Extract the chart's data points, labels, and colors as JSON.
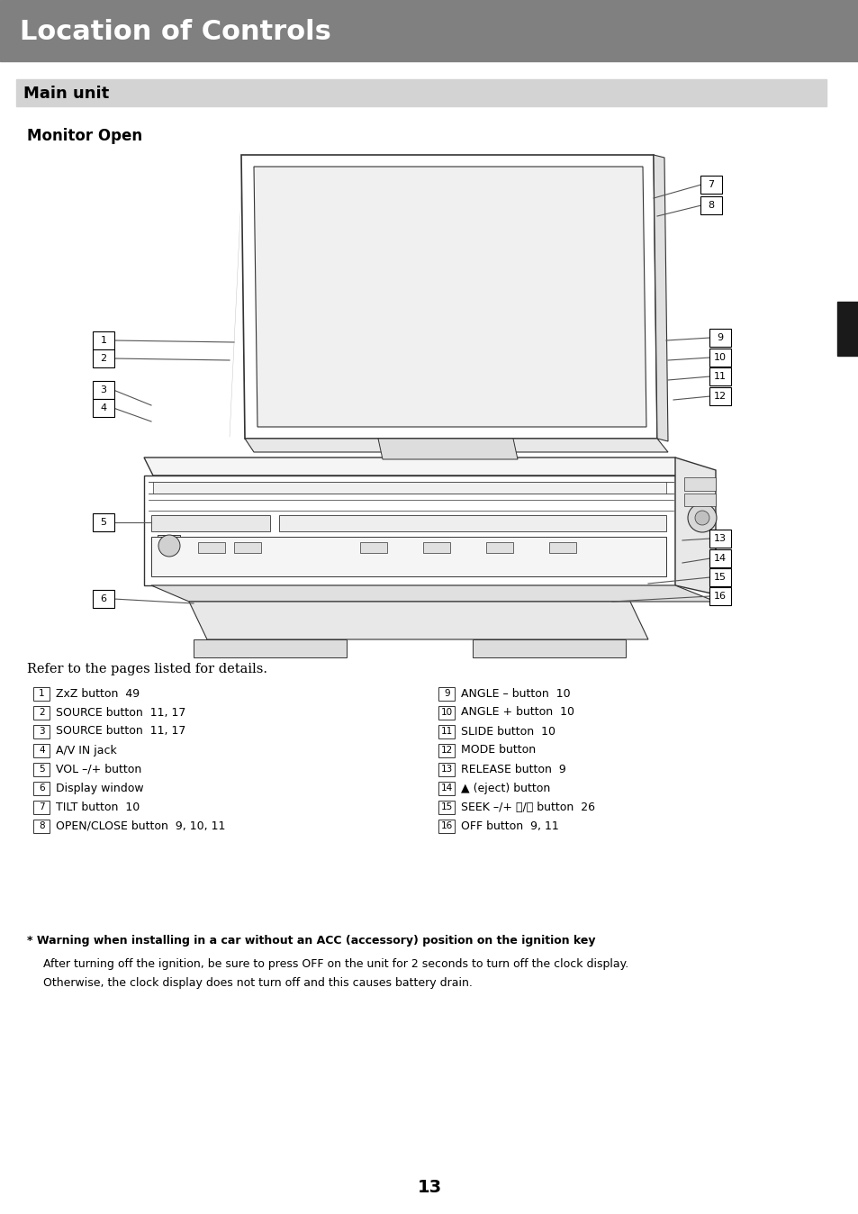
{
  "header_bg": "#808080",
  "header_text": "Location of Controls",
  "header_text_color": "#ffffff",
  "header_font_size": 22,
  "section_bg": "#d3d3d3",
  "section_text": "Main unit",
  "section_font_size": 13,
  "monitor_open_label": "Monitor Open",
  "refer_text": "Refer to the pages listed for details.",
  "left_items": [
    [
      "1",
      "ZxZ button  49"
    ],
    [
      "2",
      "SOURCE button  11, 17"
    ],
    [
      "3",
      "SOURCE button  11, 17"
    ],
    [
      "4",
      "A/V IN jack"
    ],
    [
      "5",
      "VOL –/+ button"
    ],
    [
      "6",
      "Display window"
    ],
    [
      "7",
      "TILT button  10"
    ],
    [
      "8",
      "OPEN/CLOSE button  9, 10, 11"
    ]
  ],
  "right_items": [
    [
      "9",
      "ANGLE – button  10"
    ],
    [
      "10",
      "ANGLE + button  10"
    ],
    [
      "11",
      "SLIDE button  10"
    ],
    [
      "12",
      "MODE button"
    ],
    [
      "13",
      "RELEASE button  9"
    ],
    [
      "14",
      "▲ (eject) button"
    ],
    [
      "15",
      "SEEK –/+ ⧀/⧁ button  26"
    ],
    [
      "16",
      "OFF button  9, 11"
    ]
  ],
  "warning_bold": "* Warning when installing in a car without an ACC (accessory) position on the ignition key",
  "warning_line1": "After turning off the ignition, be sure to press OFF on the unit for 2 seconds to turn off the clock display.",
  "warning_line2": "Otherwise, the clock display does not turn off and this causes battery drain.",
  "page_number": "13",
  "bg_color": "#ffffff",
  "text_color": "#000000",
  "sidebar_color": "#1a1a1a",
  "diagram_line_color": "#333333",
  "diagram_fill": "#f8f8f8"
}
